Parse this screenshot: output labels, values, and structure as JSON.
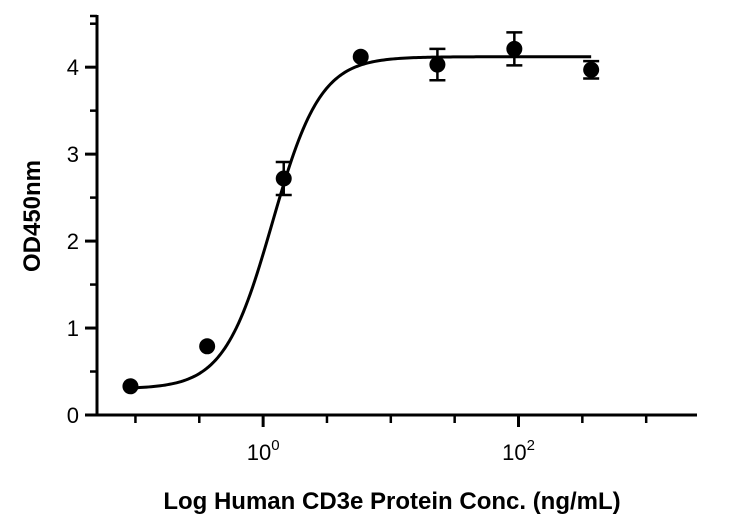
{
  "chart_data": {
    "type": "scatter",
    "xlabel": "Log Human CD3e Protein Conc. (ng/mL)",
    "ylabel": "OD450nm",
    "x_scale": "log",
    "xlim": [
      0.05,
      2500
    ],
    "ylim": [
      0,
      4.6
    ],
    "y_ticks": [
      0,
      1,
      2,
      3,
      4
    ],
    "x_ticks": [
      {
        "value": 1,
        "base": "10",
        "exp": "0"
      },
      {
        "value": 100,
        "base": "10",
        "exp": "2"
      }
    ],
    "grid": false,
    "legend": "none",
    "points": [
      {
        "x": 0.0914,
        "y": 0.33,
        "err": 0
      },
      {
        "x": 0.3645,
        "y": 0.79,
        "err": 0
      },
      {
        "x": 1.4501,
        "y": 2.72,
        "err": 0.19
      },
      {
        "x": 5.8124,
        "y": 4.12,
        "err": 0
      },
      {
        "x": 23.1699,
        "y": 4.03,
        "err": 0.18
      },
      {
        "x": 92.7656,
        "y": 4.21,
        "err": 0.19
      },
      {
        "x": 370.745,
        "y": 3.97,
        "err": 0.1
      }
    ],
    "fit": {
      "model": "4PL",
      "bottom": 0.3,
      "top": 4.12,
      "ec50": 1.18,
      "hill": 2.3,
      "x_range": [
        0.0914,
        370.745
      ]
    },
    "colors": {
      "marker": "#000000",
      "line": "#000000"
    }
  }
}
